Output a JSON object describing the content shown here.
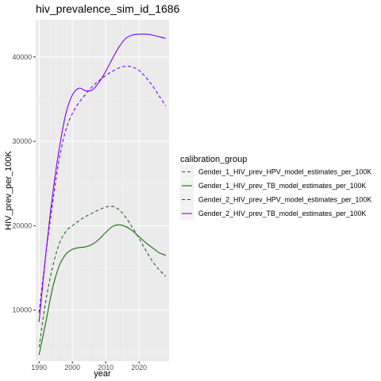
{
  "chart_data": {
    "type": "line",
    "title": "hiv_prevalence_sim_id_1686",
    "xlabel": "year",
    "ylabel": "HIV_prev_per_100K",
    "xlim": [
      1989.0,
      2029.0
    ],
    "ylim": [
      3950,
      44400
    ],
    "x_ticks": [
      1990,
      2000,
      2010,
      2020
    ],
    "y_ticks": [
      10000,
      20000,
      30000,
      40000
    ],
    "grid": true,
    "legend": {
      "title": "calibration_group",
      "placement": "right"
    },
    "series": [
      {
        "name": "Gender_1_HIV_prev_HPV_model_estimates_per_100K",
        "color": "#1b6b10",
        "dash": "dashed",
        "points": [
          [
            1990,
            5600
          ],
          [
            1992,
            11000
          ],
          [
            1994,
            15000
          ],
          [
            1996,
            17800
          ],
          [
            1998,
            19300
          ],
          [
            2000,
            20000
          ],
          [
            2002,
            20600
          ],
          [
            2004,
            21100
          ],
          [
            2006,
            21500
          ],
          [
            2008,
            21900
          ],
          [
            2010,
            22200
          ],
          [
            2012,
            22300
          ],
          [
            2014,
            21900
          ],
          [
            2016,
            21000
          ],
          [
            2018,
            19800
          ],
          [
            2020,
            18500
          ],
          [
            2022,
            17100
          ],
          [
            2024,
            15800
          ],
          [
            2026,
            14800
          ],
          [
            2028,
            14000
          ]
        ]
      },
      {
        "name": "Gender_1_HIV_prev_TB_model_estimates_per_100K",
        "color": "#1b6b10",
        "dash": "solid",
        "points": [
          [
            1990,
            4700
          ],
          [
            1992,
            8500
          ],
          [
            1994,
            12500
          ],
          [
            1996,
            15200
          ],
          [
            1998,
            16600
          ],
          [
            2000,
            17200
          ],
          [
            2002,
            17400
          ],
          [
            2004,
            17500
          ],
          [
            2006,
            17800
          ],
          [
            2008,
            18400
          ],
          [
            2010,
            19200
          ],
          [
            2012,
            19900
          ],
          [
            2014,
            20100
          ],
          [
            2016,
            19900
          ],
          [
            2018,
            19400
          ],
          [
            2020,
            18700
          ],
          [
            2022,
            18000
          ],
          [
            2024,
            17400
          ],
          [
            2026,
            16800
          ],
          [
            2028,
            16500
          ]
        ]
      },
      {
        "name": "Gender_2_HIV_prev_HPV_model_estimates_per_100K",
        "color": "#8000ee",
        "dash": "dashed",
        "points": [
          [
            1990,
            9700
          ],
          [
            1992,
            16500
          ],
          [
            1994,
            22500
          ],
          [
            1996,
            27800
          ],
          [
            1998,
            31300
          ],
          [
            2000,
            33300
          ],
          [
            2002,
            34600
          ],
          [
            2004,
            35600
          ],
          [
            2006,
            36500
          ],
          [
            2008,
            37200
          ],
          [
            2010,
            37800
          ],
          [
            2012,
            38300
          ],
          [
            2014,
            38700
          ],
          [
            2016,
            38900
          ],
          [
            2018,
            38800
          ],
          [
            2020,
            38400
          ],
          [
            2022,
            37600
          ],
          [
            2024,
            36600
          ],
          [
            2026,
            35400
          ],
          [
            2028,
            34200
          ]
        ]
      },
      {
        "name": "Gender_2_HIV_prev_TB_model_estimates_per_100K",
        "color": "#8000ee",
        "dash": "solid",
        "points": [
          [
            1990,
            8600
          ],
          [
            1992,
            16500
          ],
          [
            1994,
            23500
          ],
          [
            1996,
            29000
          ],
          [
            1998,
            33200
          ],
          [
            2000,
            35500
          ],
          [
            2002,
            36300
          ],
          [
            2004,
            36000
          ],
          [
            2006,
            36100
          ],
          [
            2008,
            37000
          ],
          [
            2010,
            38300
          ],
          [
            2012,
            39800
          ],
          [
            2014,
            41200
          ],
          [
            2016,
            42200
          ],
          [
            2018,
            42600
          ],
          [
            2020,
            42700
          ],
          [
            2022,
            42700
          ],
          [
            2024,
            42600
          ],
          [
            2026,
            42400
          ],
          [
            2028,
            42200
          ]
        ]
      }
    ]
  }
}
